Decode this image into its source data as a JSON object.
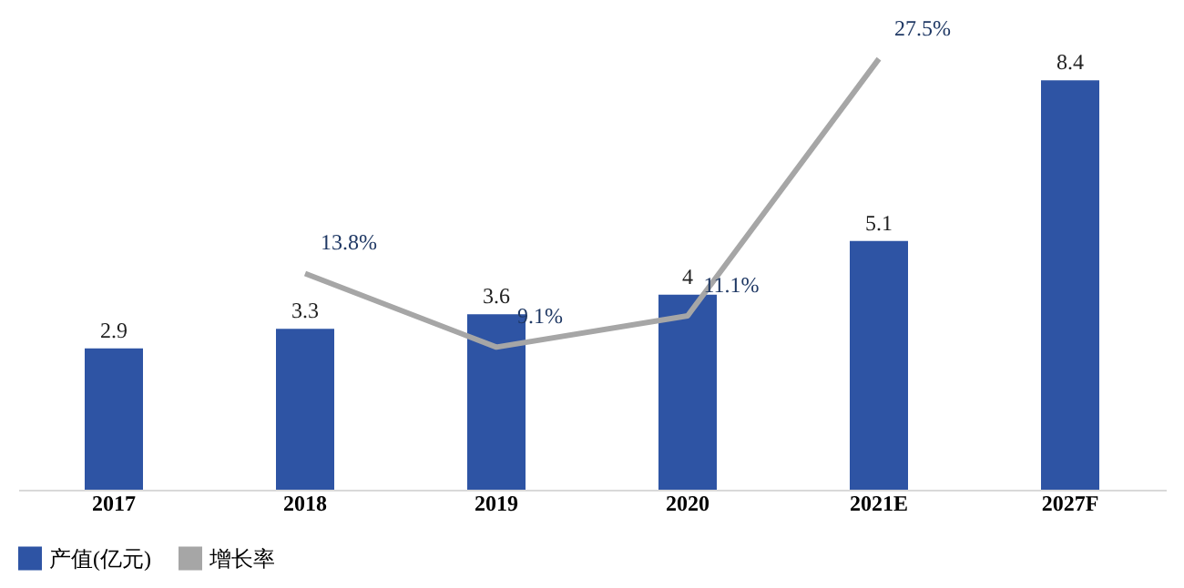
{
  "chart_data": {
    "type": "bar",
    "categories": [
      "2017",
      "2018",
      "2019",
      "2020",
      "2021E",
      "2027F"
    ],
    "series": [
      {
        "name": "产值(亿元)",
        "color": "#2e54a4",
        "values": [
          2.9,
          3.3,
          3.6,
          4,
          5.1,
          8.4
        ]
      },
      {
        "name": "增长率",
        "type": "line",
        "axis": "y2",
        "color": "#a6a6a6",
        "values": [
          null,
          13.8,
          9.1,
          11.1,
          27.5,
          null
        ],
        "value_labels": [
          null,
          "13.8%",
          "9.1%",
          "11.1%",
          "27.5%",
          null
        ]
      }
    ],
    "data_labels": true,
    "tick_labels": "x",
    "grid": false,
    "legend": "bottom",
    "marker": "none",
    "line_style": "solid"
  }
}
